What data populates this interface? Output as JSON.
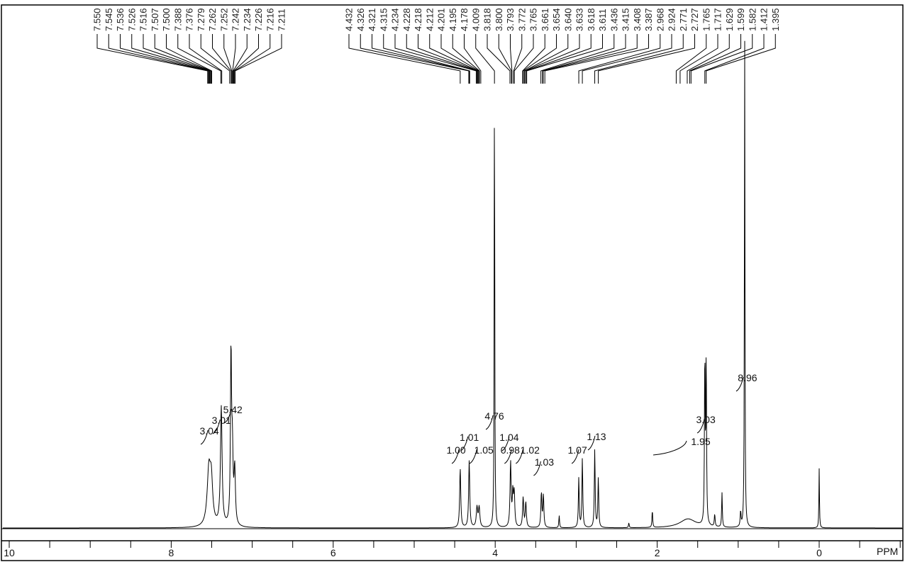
{
  "chart_data": {
    "type": "line",
    "title": "",
    "xlabel": "PPM",
    "xlim": [
      10,
      -1
    ],
    "x_reversed": true,
    "x_tick_labels": [
      "10",
      "8",
      "6",
      "4",
      "2",
      "0"
    ],
    "x_major_ticks": [
      10,
      8,
      6,
      4,
      2,
      0
    ],
    "x_minor_step": 0.5,
    "grid": false,
    "peak_label_groups": [
      [
        "7.550",
        "7.545",
        "7.536",
        "7.526",
        "7.516",
        "7.507",
        "7.500",
        "7.388",
        "7.376",
        "7.279",
        "7.262",
        "7.252",
        "7.242",
        "7.234",
        "7.226",
        "7.216",
        "7.211"
      ],
      [
        "4.432",
        "4.326",
        "4.321",
        "4.315",
        "4.234",
        "4.228",
        "4.218",
        "4.212",
        "4.201",
        "4.195",
        "4.178",
        "4.009",
        "3.818",
        "3.800",
        "3.793",
        "3.772",
        "3.765",
        "3.661",
        "3.654",
        "3.640",
        "3.633",
        "3.618",
        "3.611",
        "3.436",
        "3.415",
        "3.408",
        "3.387",
        "2.968",
        "2.924",
        "2.771",
        "2.727",
        "1.765",
        "1.717",
        "1.629",
        "1.599",
        "1.582",
        "1.412",
        "1.395"
      ]
    ],
    "peaks": [
      {
        "ppm": 7.535,
        "intensity": 11,
        "width": 0.025
      },
      {
        "ppm": 7.505,
        "intensity": 8,
        "width": 0.02
      },
      {
        "ppm": 7.382,
        "intensity": 24,
        "width": 0.012
      },
      {
        "ppm": 7.262,
        "intensity": 34,
        "width": 0.008
      },
      {
        "ppm": 7.245,
        "intensity": 14,
        "width": 0.01
      },
      {
        "ppm": 7.216,
        "intensity": 11,
        "width": 0.01
      },
      {
        "ppm": 4.432,
        "intensity": 12,
        "width": 0.008
      },
      {
        "ppm": 4.321,
        "intensity": 13.5,
        "width": 0.008
      },
      {
        "ppm": 4.225,
        "intensity": 4,
        "width": 0.01
      },
      {
        "ppm": 4.198,
        "intensity": 4,
        "width": 0.01
      },
      {
        "ppm": 4.009,
        "intensity": 92,
        "width": 0.004
      },
      {
        "ppm": 3.81,
        "intensity": 13,
        "width": 0.008
      },
      {
        "ppm": 3.782,
        "intensity": 6.5,
        "width": 0.008
      },
      {
        "ppm": 3.765,
        "intensity": 6.5,
        "width": 0.008
      },
      {
        "ppm": 3.655,
        "intensity": 6,
        "width": 0.008
      },
      {
        "ppm": 3.622,
        "intensity": 5,
        "width": 0.008
      },
      {
        "ppm": 3.43,
        "intensity": 7,
        "width": 0.007
      },
      {
        "ppm": 3.405,
        "intensity": 6.5,
        "width": 0.007
      },
      {
        "ppm": 3.21,
        "intensity": 2.5,
        "width": 0.005
      },
      {
        "ppm": 2.968,
        "intensity": 10,
        "width": 0.006
      },
      {
        "ppm": 2.924,
        "intensity": 14,
        "width": 0.006
      },
      {
        "ppm": 2.771,
        "intensity": 15.7,
        "width": 0.006
      },
      {
        "ppm": 2.727,
        "intensity": 10,
        "width": 0.006
      },
      {
        "ppm": 2.35,
        "intensity": 1,
        "width": 0.005
      },
      {
        "ppm": 2.06,
        "intensity": 3.5,
        "width": 0.005
      },
      {
        "ppm": 1.62,
        "intensity": 1.8,
        "width": 0.12
      },
      {
        "ppm": 1.412,
        "intensity": 35,
        "width": 0.005
      },
      {
        "ppm": 1.395,
        "intensity": 34,
        "width": 0.005
      },
      {
        "ppm": 1.29,
        "intensity": 2.5,
        "width": 0.006
      },
      {
        "ppm": 1.2,
        "intensity": 7,
        "width": 0.005
      },
      {
        "ppm": 0.97,
        "intensity": 3,
        "width": 0.006
      },
      {
        "ppm": 0.92,
        "intensity": 100,
        "width": 0.004
      },
      {
        "ppm": 0.0,
        "intensity": 12,
        "width": 0.004
      }
    ],
    "integrals": [
      {
        "value": "3.04",
        "ppm": 7.53
      },
      {
        "value": "3.01",
        "ppm": 7.38
      },
      {
        "value": "5.42",
        "ppm": 7.24
      },
      {
        "value": "4.76",
        "ppm": 4.01
      },
      {
        "value": "1.01",
        "ppm": 4.32
      },
      {
        "value": "1.00",
        "ppm": 4.43
      },
      {
        "value": "1.05",
        "ppm": 4.21
      },
      {
        "value": "1.04",
        "ppm": 3.81
      },
      {
        "value": "0.98",
        "ppm": 3.78
      },
      {
        "value": "1.02",
        "ppm": 3.64
      },
      {
        "value": "1.03",
        "ppm": 3.42
      },
      {
        "value": "1.07",
        "ppm": 2.95
      },
      {
        "value": "1.13",
        "ppm": 2.75
      },
      {
        "value": "1.95",
        "ppm": 1.62
      },
      {
        "value": "3.03",
        "ppm": 1.4
      },
      {
        "value": "8.96",
        "ppm": 0.92
      }
    ]
  }
}
